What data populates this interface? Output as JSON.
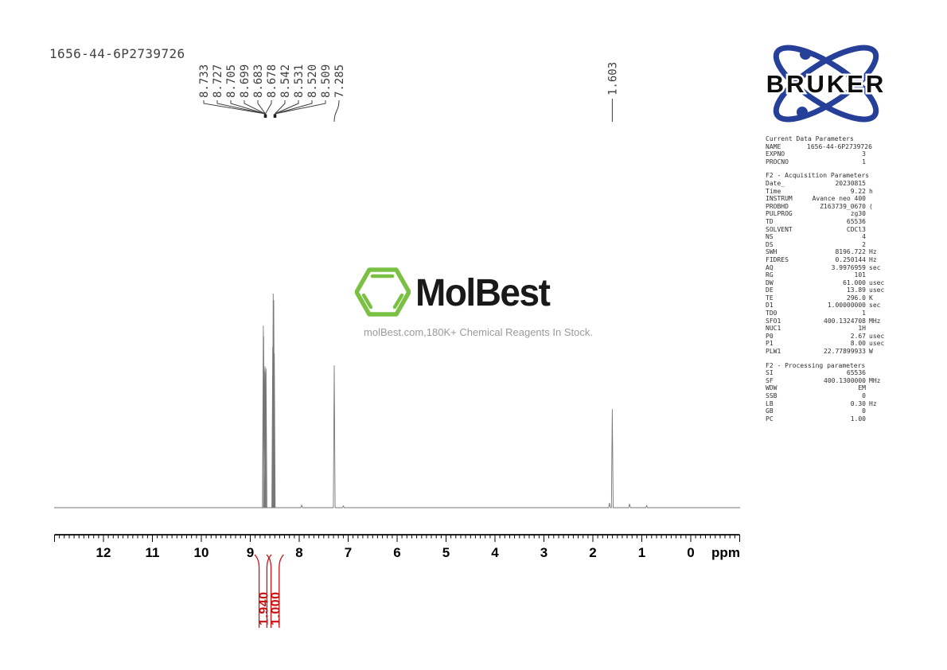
{
  "title": "1656-44-6P2739726",
  "watermark": {
    "brand": "MolBest",
    "tagline": "molBest.com,180K+ Chemical Reagents In Stock.",
    "green": "#7ac143"
  },
  "bruker": {
    "brand": "BRUKER",
    "blue": "#26409a"
  },
  "axis": {
    "unit_label": "ppm",
    "ticks": [
      12,
      11,
      10,
      9,
      8,
      7,
      6,
      5,
      4,
      3,
      2,
      1,
      0
    ]
  },
  "chart_data": {
    "type": "line",
    "title": "1H NMR spectrum 1656-44-6P2739726",
    "xlabel": "ppm",
    "xlim": [
      13.0,
      -1.0
    ],
    "x_axis_inverted": true,
    "grid": false,
    "peak_labels": [
      "8.733",
      "8.727",
      "8.705",
      "8.699",
      "8.683",
      "8.678",
      "8.542",
      "8.531",
      "8.520",
      "8.509",
      "7.285"
    ],
    "single_peak_label": "1.603",
    "peaks": [
      {
        "ppm": 8.733,
        "rel_height": 0.85
      },
      {
        "ppm": 8.727,
        "rel_height": 0.8
      },
      {
        "ppm": 8.705,
        "rel_height": 0.64
      },
      {
        "ppm": 8.699,
        "rel_height": 0.66
      },
      {
        "ppm": 8.683,
        "rel_height": 0.63
      },
      {
        "ppm": 8.678,
        "rel_height": 0.65
      },
      {
        "ppm": 8.542,
        "rel_height": 0.75
      },
      {
        "ppm": 8.531,
        "rel_height": 1.0
      },
      {
        "ppm": 8.52,
        "rel_height": 0.97
      },
      {
        "ppm": 8.509,
        "rel_height": 0.72
      },
      {
        "ppm": 7.285,
        "rel_height": 0.665
      },
      {
        "ppm": 7.95,
        "rel_height": 0.012
      },
      {
        "ppm": 7.1,
        "rel_height": 0.008
      },
      {
        "ppm": 1.66,
        "rel_height": 0.022
      },
      {
        "ppm": 1.603,
        "rel_height": 0.46
      },
      {
        "ppm": 1.25,
        "rel_height": 0.018
      },
      {
        "ppm": 0.9,
        "rel_height": 0.01
      }
    ],
    "integrals": [
      {
        "value": "1.940",
        "from_ppm": 8.82,
        "to_ppm": 8.66
      },
      {
        "value": "1.000",
        "from_ppm": 8.575,
        "to_ppm": 8.41
      }
    ],
    "integral_color": "#cc1111"
  },
  "parameters": {
    "sections": [
      {
        "header": "Current Data Parameters",
        "rows": [
          [
            "NAME",
            "1656-44-6P2739726",
            ""
          ],
          [
            "EXPNO",
            "3",
            ""
          ],
          [
            "PROCNO",
            "1",
            ""
          ]
        ]
      },
      {
        "header": "F2 - Acquisition Parameters",
        "rows": [
          [
            "Date_",
            "20230815",
            ""
          ],
          [
            "Time",
            "9.22",
            "h"
          ],
          [
            "INSTRUM",
            "Avance neo 400",
            ""
          ],
          [
            "PROBHD",
            "Z163739_0670",
            "("
          ],
          [
            "PULPROG",
            "zg30",
            ""
          ],
          [
            "TD",
            "65536",
            ""
          ],
          [
            "SOLVENT",
            "CDCl3",
            ""
          ],
          [
            "NS",
            "4",
            ""
          ],
          [
            "DS",
            "2",
            ""
          ],
          [
            "SWH",
            "8196.722",
            "Hz"
          ],
          [
            "FIDRES",
            "0.250144",
            "Hz"
          ],
          [
            "AQ",
            "3.9976959",
            "sec"
          ],
          [
            "RG",
            "101",
            ""
          ],
          [
            "DW",
            "61.000",
            "usec"
          ],
          [
            "DE",
            "13.89",
            "usec"
          ],
          [
            "TE",
            "296.0",
            "K"
          ],
          [
            "D1",
            "1.00000000",
            "sec"
          ],
          [
            "TD0",
            "1",
            ""
          ],
          [
            "SFO1",
            "400.1324708",
            "MHz"
          ],
          [
            "NUC1",
            "1H",
            ""
          ],
          [
            "P0",
            "2.67",
            "usec"
          ],
          [
            "P1",
            "8.00",
            "usec"
          ],
          [
            "PLW1",
            "22.77899933",
            "W"
          ]
        ]
      },
      {
        "header": "F2 - Processing parameters",
        "rows": [
          [
            "SI",
            "65536",
            ""
          ],
          [
            "SF",
            "400.1300000",
            "MHz"
          ],
          [
            "WDW",
            "EM",
            ""
          ],
          [
            "SSB",
            "0",
            ""
          ],
          [
            "LB",
            "0.30",
            "Hz"
          ],
          [
            "GB",
            "0",
            ""
          ],
          [
            "PC",
            "1.00",
            ""
          ]
        ]
      }
    ]
  }
}
